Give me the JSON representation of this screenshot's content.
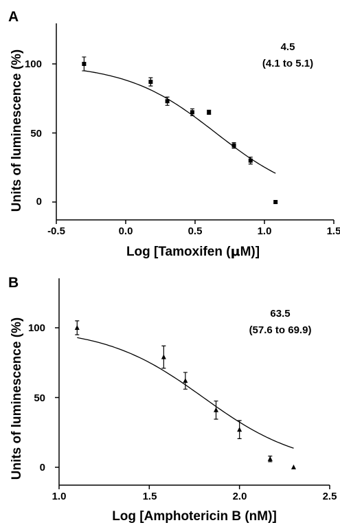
{
  "chart_data": [
    {
      "panel_label": "A",
      "type": "scatter",
      "xlabel_parts": [
        "Log [Tamoxifen (",
        "μ",
        "M)]"
      ],
      "ylabel": "Units of luminescence (%)",
      "xlim": [
        -0.5,
        1.5
      ],
      "ylim": [
        -12,
        120
      ],
      "xticks": [
        -0.5,
        0.0,
        0.5,
        1.0,
        1.5
      ],
      "xtick_labels": [
        "-0.5",
        "0.0",
        "0.5",
        "1.0",
        "1.5"
      ],
      "yticks": [
        0,
        50,
        100
      ],
      "ytick_labels": [
        "0",
        "50",
        "100"
      ],
      "marker": "square",
      "grid": false,
      "annotation": [
        "4.5",
        "(4.1 to 5.1)"
      ],
      "points": [
        {
          "x": -0.3,
          "y": 100,
          "err": 5
        },
        {
          "x": 0.18,
          "y": 87,
          "err": 3
        },
        {
          "x": 0.3,
          "y": 73,
          "err": 3
        },
        {
          "x": 0.48,
          "y": 65,
          "err": 2.5
        },
        {
          "x": 0.6,
          "y": 65,
          "err": 1.5
        },
        {
          "x": 0.78,
          "y": 41,
          "err": 2
        },
        {
          "x": 0.9,
          "y": 30,
          "err": 2.5
        },
        {
          "x": 1.08,
          "y": 0,
          "err": 0
        }
      ],
      "fit": {
        "top": 100,
        "bottom": 0,
        "logEC50": 0.65,
        "hill": -1.35,
        "x_range": [
          -0.3,
          1.08
        ]
      }
    },
    {
      "panel_label": "B",
      "type": "scatter",
      "xlabel": "Log [Amphotericin B (nM)]",
      "ylabel": "Units of luminescence (%)",
      "xlim": [
        1.0,
        2.5
      ],
      "ylim": [
        -12,
        120
      ],
      "xticks": [
        1.0,
        1.5,
        2.0,
        2.5
      ],
      "xtick_labels": [
        "1.0",
        "1.5",
        "2.0",
        "2.5"
      ],
      "yticks": [
        0,
        50,
        100
      ],
      "ytick_labels": [
        "0",
        "50",
        "100"
      ],
      "marker": "triangle",
      "grid": false,
      "annotation": [
        "63.5",
        "(57.6 to 69.9)"
      ],
      "points": [
        {
          "x": 1.1,
          "y": 100,
          "err": 5
        },
        {
          "x": 1.58,
          "y": 79,
          "err": 8
        },
        {
          "x": 1.7,
          "y": 62,
          "err": 6
        },
        {
          "x": 1.87,
          "y": 41,
          "err": 6.5
        },
        {
          "x": 2.0,
          "y": 27,
          "err": 6.5
        },
        {
          "x": 2.17,
          "y": 6,
          "err": 2
        },
        {
          "x": 2.3,
          "y": 0,
          "err": 0
        }
      ],
      "fit": {
        "top": 100,
        "bottom": 0,
        "logEC50": 1.8,
        "hill": -1.6,
        "x_range": [
          1.1,
          2.3
        ]
      }
    }
  ]
}
